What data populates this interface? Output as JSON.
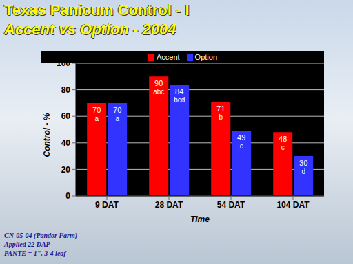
{
  "chart_data": {
    "type": "bar",
    "title": "Texas Panicum Control - I",
    "subtitle": "Accent vs Option - 2004",
    "x_label": "Time",
    "y_label": "Control - %",
    "categories": [
      "9 DAT",
      "28 DAT",
      "54 DAT",
      "104 DAT"
    ],
    "series": [
      {
        "name": "Accent",
        "color": "#ff0000",
        "values": [
          70,
          90,
          71,
          48
        ],
        "letters": [
          "a",
          "abc",
          "b",
          "c"
        ]
      },
      {
        "name": "Option",
        "color": "#3333ff",
        "values": [
          70,
          84,
          49,
          30
        ],
        "letters": [
          "a",
          "bcd",
          "c",
          "d"
        ]
      }
    ],
    "ylim": [
      0,
      100
    ],
    "yticks": [
      0,
      20,
      40,
      60,
      80,
      100
    ],
    "grid": true,
    "legend": "top",
    "data_labels": true,
    "notes": [
      "CN-05-04 (Pandor Farm)",
      "Applied 22 DAP",
      "PANTE = 1\", 3-4 leaf"
    ]
  }
}
